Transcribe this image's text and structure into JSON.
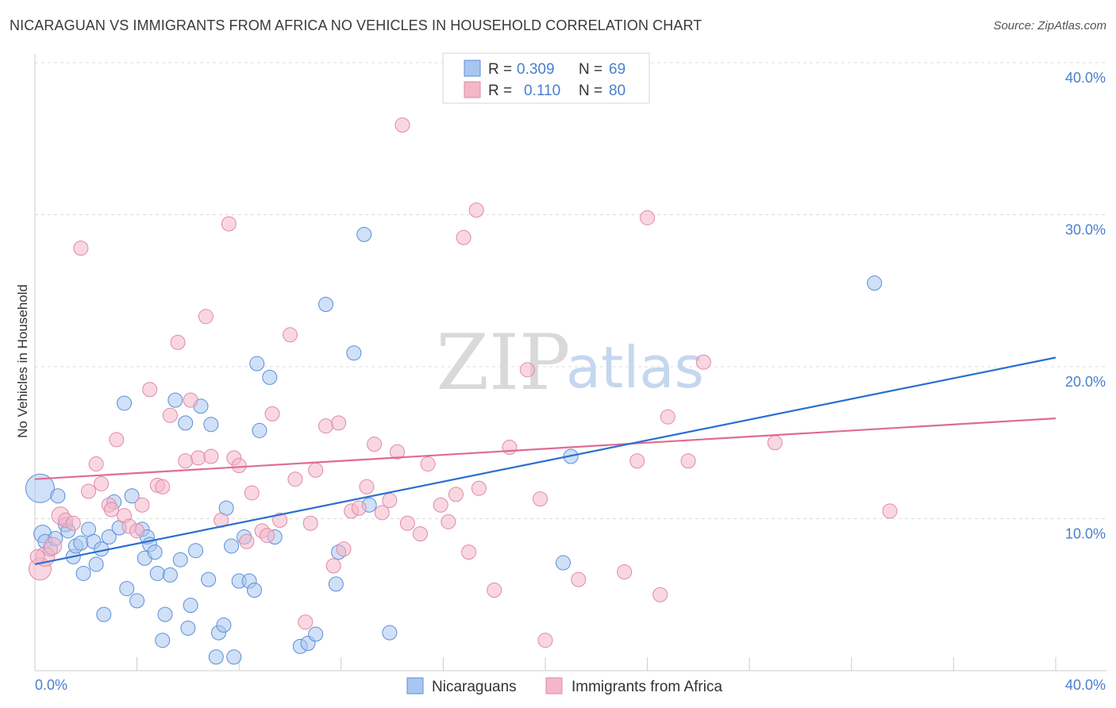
{
  "header": {
    "title": "NICARAGUAN VS IMMIGRANTS FROM AFRICA NO VEHICLES IN HOUSEHOLD CORRELATION CHART",
    "source": "Source: ZipAtlas.com"
  },
  "watermark": {
    "zip": "ZIP",
    "atlas": "atlas"
  },
  "legend": {
    "rows": [
      {
        "r_label": "R =",
        "r_value": "0.309",
        "n_label": "N =",
        "n_value": "69",
        "color": "#a9c6f0"
      },
      {
        "r_label": "R =",
        "r_value": "0.110",
        "n_label": "N =",
        "n_value": "80",
        "color": "#f4b7c9"
      }
    ]
  },
  "colors": {
    "blue_fill": "#a9c6f0",
    "blue_stroke": "#5b8fd8",
    "blue_line": "#2a6fd1",
    "pink_fill": "#f4b7c9",
    "pink_stroke": "#e08aa6",
    "pink_line": "#e06a95",
    "axis_tick_text": "#4a7fcf",
    "grid": "#dddddd"
  },
  "chart_data": {
    "type": "scatter",
    "title": "NICARAGUAN VS IMMIGRANTS FROM AFRICA NO VEHICLES IN HOUSEHOLD CORRELATION CHART",
    "xlabel": "",
    "ylabel": "No Vehicles in Household",
    "xlim": [
      0,
      40
    ],
    "ylim": [
      0,
      40
    ],
    "x_tick_labels": [
      "0.0%",
      "40.0%"
    ],
    "y_tick_labels": [
      "10.0%",
      "20.0%",
      "30.0%",
      "40.0%"
    ],
    "y_ticks": [
      10,
      20,
      30,
      40
    ],
    "grid": true,
    "legend_position": "top-center",
    "series": [
      {
        "name": "Nicaraguans",
        "r": 0.309,
        "n": 69,
        "trend": {
          "x0": 0,
          "y0": 7.0,
          "x1": 40,
          "y1": 20.6
        },
        "points": [
          [
            0.2,
            12.0,
            18
          ],
          [
            0.3,
            9.0,
            11
          ],
          [
            0.4,
            8.5,
            9
          ],
          [
            0.6,
            8.0,
            9
          ],
          [
            0.8,
            8.7,
            9
          ],
          [
            0.9,
            11.5,
            9
          ],
          [
            1.2,
            9.6,
            9
          ],
          [
            1.3,
            9.2,
            9
          ],
          [
            1.5,
            7.5,
            9
          ],
          [
            1.6,
            8.2,
            9
          ],
          [
            1.8,
            8.4,
            9
          ],
          [
            1.9,
            6.4,
            9
          ],
          [
            2.1,
            9.3,
            9
          ],
          [
            2.3,
            8.5,
            9
          ],
          [
            2.4,
            7.0,
            9
          ],
          [
            2.6,
            8.0,
            9
          ],
          [
            2.7,
            3.7,
            9
          ],
          [
            2.9,
            8.8,
            9
          ],
          [
            3.1,
            11.1,
            9
          ],
          [
            3.3,
            9.4,
            9
          ],
          [
            3.5,
            17.6,
            9
          ],
          [
            3.6,
            5.4,
            9
          ],
          [
            3.8,
            11.5,
            9
          ],
          [
            4.0,
            4.6,
            9
          ],
          [
            4.2,
            9.3,
            9
          ],
          [
            4.3,
            7.4,
            9
          ],
          [
            4.4,
            8.8,
            9
          ],
          [
            4.5,
            8.3,
            9
          ],
          [
            4.7,
            7.8,
            9
          ],
          [
            4.8,
            6.4,
            9
          ],
          [
            5.0,
            2.0,
            9
          ],
          [
            5.1,
            3.7,
            9
          ],
          [
            5.3,
            6.3,
            9
          ],
          [
            5.5,
            17.8,
            9
          ],
          [
            5.7,
            7.3,
            9
          ],
          [
            5.9,
            16.3,
            9
          ],
          [
            6.0,
            2.8,
            9
          ],
          [
            6.1,
            4.3,
            9
          ],
          [
            6.3,
            7.9,
            9
          ],
          [
            6.5,
            17.4,
            9
          ],
          [
            6.8,
            6.0,
            9
          ],
          [
            6.9,
            16.2,
            9
          ],
          [
            7.1,
            0.9,
            9
          ],
          [
            7.2,
            2.5,
            9
          ],
          [
            7.4,
            3.0,
            9
          ],
          [
            7.5,
            10.7,
            9
          ],
          [
            7.7,
            8.2,
            9
          ],
          [
            7.8,
            0.9,
            9
          ],
          [
            8.0,
            5.9,
            9
          ],
          [
            8.2,
            8.8,
            9
          ],
          [
            8.4,
            5.9,
            9
          ],
          [
            8.6,
            5.3,
            9
          ],
          [
            8.7,
            20.2,
            9
          ],
          [
            8.8,
            15.8,
            9
          ],
          [
            9.2,
            19.3,
            9
          ],
          [
            9.4,
            8.8,
            9
          ],
          [
            10.4,
            1.6,
            9
          ],
          [
            10.7,
            1.8,
            9
          ],
          [
            11.0,
            2.4,
            9
          ],
          [
            11.4,
            24.1,
            9
          ],
          [
            11.8,
            5.7,
            9
          ],
          [
            11.9,
            7.8,
            9
          ],
          [
            12.5,
            20.9,
            9
          ],
          [
            12.9,
            28.7,
            9
          ],
          [
            13.1,
            10.9,
            9
          ],
          [
            13.9,
            2.5,
            9
          ],
          [
            20.7,
            7.1,
            9
          ],
          [
            21.0,
            14.1,
            9
          ],
          [
            32.9,
            25.5,
            9
          ]
        ]
      },
      {
        "name": "Immigrants from Africa",
        "r": 0.11,
        "n": 80,
        "trend": {
          "x0": 0,
          "y0": 12.6,
          "x1": 40,
          "y1": 16.6
        },
        "points": [
          [
            0.2,
            6.7,
            14
          ],
          [
            0.4,
            7.5,
            12
          ],
          [
            0.7,
            8.2,
            11
          ],
          [
            1.0,
            10.2,
            11
          ],
          [
            1.2,
            9.9,
            9
          ],
          [
            1.5,
            9.7,
            9
          ],
          [
            1.8,
            27.8,
            9
          ],
          [
            2.1,
            11.8,
            9
          ],
          [
            2.4,
            13.6,
            9
          ],
          [
            2.6,
            12.3,
            9
          ],
          [
            2.9,
            10.9,
            9
          ],
          [
            3.0,
            10.6,
            9
          ],
          [
            3.2,
            15.2,
            9
          ],
          [
            3.5,
            10.2,
            9
          ],
          [
            3.7,
            9.5,
            9
          ],
          [
            4.0,
            9.2,
            9
          ],
          [
            4.2,
            10.9,
            9
          ],
          [
            4.5,
            18.5,
            9
          ],
          [
            4.8,
            12.2,
            9
          ],
          [
            5.0,
            12.1,
            9
          ],
          [
            5.3,
            16.8,
            9
          ],
          [
            5.6,
            21.6,
            9
          ],
          [
            5.9,
            13.8,
            9
          ],
          [
            6.1,
            17.8,
            9
          ],
          [
            6.4,
            14.0,
            9
          ],
          [
            6.7,
            23.3,
            9
          ],
          [
            6.9,
            14.1,
            9
          ],
          [
            7.3,
            9.9,
            9
          ],
          [
            7.6,
            29.4,
            9
          ],
          [
            7.8,
            14.0,
            9
          ],
          [
            8.0,
            13.5,
            9
          ],
          [
            8.3,
            8.5,
            9
          ],
          [
            8.5,
            11.7,
            9
          ],
          [
            8.9,
            9.2,
            9
          ],
          [
            9.1,
            8.9,
            9
          ],
          [
            9.3,
            16.9,
            9
          ],
          [
            9.6,
            9.9,
            9
          ],
          [
            10.0,
            22.1,
            9
          ],
          [
            10.2,
            12.6,
            9
          ],
          [
            10.6,
            3.2,
            9
          ],
          [
            10.8,
            9.7,
            9
          ],
          [
            11.0,
            13.2,
            9
          ],
          [
            11.4,
            16.1,
            9
          ],
          [
            11.7,
            6.9,
            9
          ],
          [
            11.9,
            16.3,
            9
          ],
          [
            12.1,
            8.0,
            9
          ],
          [
            12.4,
            10.5,
            9
          ],
          [
            12.7,
            10.7,
            9
          ],
          [
            13.0,
            12.1,
            9
          ],
          [
            13.3,
            14.9,
            9
          ],
          [
            13.6,
            10.4,
            9
          ],
          [
            13.9,
            11.2,
            9
          ],
          [
            14.2,
            14.4,
            9
          ],
          [
            14.6,
            9.7,
            9
          ],
          [
            15.1,
            9.0,
            9
          ],
          [
            15.4,
            13.6,
            9
          ],
          [
            15.9,
            10.9,
            9
          ],
          [
            16.2,
            9.8,
            9
          ],
          [
            16.5,
            11.6,
            9
          ],
          [
            16.8,
            28.5,
            9
          ],
          [
            17.0,
            7.8,
            9
          ],
          [
            17.3,
            30.3,
            9
          ],
          [
            17.4,
            12.0,
            9
          ],
          [
            18.0,
            5.3,
            9
          ],
          [
            18.6,
            14.7,
            9
          ],
          [
            19.3,
            19.8,
            9
          ],
          [
            19.8,
            11.3,
            9
          ],
          [
            20.0,
            2.0,
            9
          ],
          [
            21.3,
            6.0,
            9
          ],
          [
            23.1,
            6.5,
            9
          ],
          [
            23.6,
            13.8,
            9
          ],
          [
            24.0,
            29.8,
            9
          ],
          [
            24.5,
            5.0,
            9
          ],
          [
            24.8,
            16.7,
            9
          ],
          [
            25.6,
            13.8,
            9
          ],
          [
            26.2,
            20.3,
            9
          ],
          [
            14.4,
            35.9,
            9
          ],
          [
            29.0,
            15.0,
            9
          ],
          [
            33.5,
            10.5,
            9
          ],
          [
            0.1,
            7.5,
            9
          ]
        ]
      }
    ]
  },
  "bottom_legend": {
    "items": [
      {
        "label": "Nicaraguans",
        "color": "#a9c6f0"
      },
      {
        "label": "Immigrants from Africa",
        "color": "#f4b7c9"
      }
    ]
  }
}
